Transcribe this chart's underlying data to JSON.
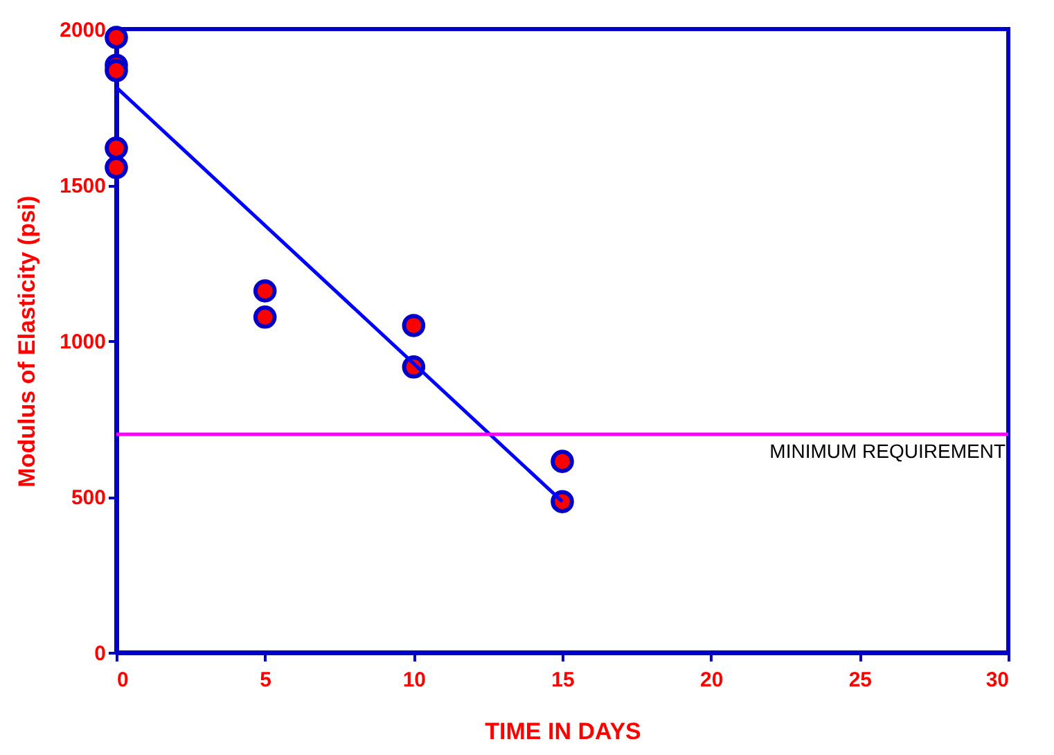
{
  "chart_data": {
    "type": "scatter",
    "xlabel": "TIME IN DAYS",
    "ylabel": "Modulus of Elasticity (psi)",
    "xlim": [
      0,
      30
    ],
    "xticks": [
      0,
      5,
      10,
      15,
      20,
      25,
      30
    ],
    "ylim": [
      0,
      2000
    ],
    "yticks": [
      0,
      500,
      1000,
      1500,
      2000
    ],
    "grid": false,
    "marker": "circle",
    "series": [
      {
        "color": "#ff0000",
        "x": [
          0,
          0,
          0,
          0,
          0,
          5,
          5,
          10,
          10,
          15,
          15
        ],
        "values": [
          1973,
          1884,
          1867,
          1618,
          1556,
          1160,
          1076,
          1049,
          916,
          613,
          484
        ]
      },
      {
        "type": "line",
        "color": "#0000ff",
        "x": [
          0,
          15
        ],
        "values": [
          1813,
          484
        ],
        "marker": "none",
        "line_style": "solid"
      }
    ],
    "ref_lines": [
      {
        "axis": "y",
        "value": 700,
        "label": "MINIMUM REQUIREMENT",
        "color": "#ff00ff"
      }
    ]
  }
}
